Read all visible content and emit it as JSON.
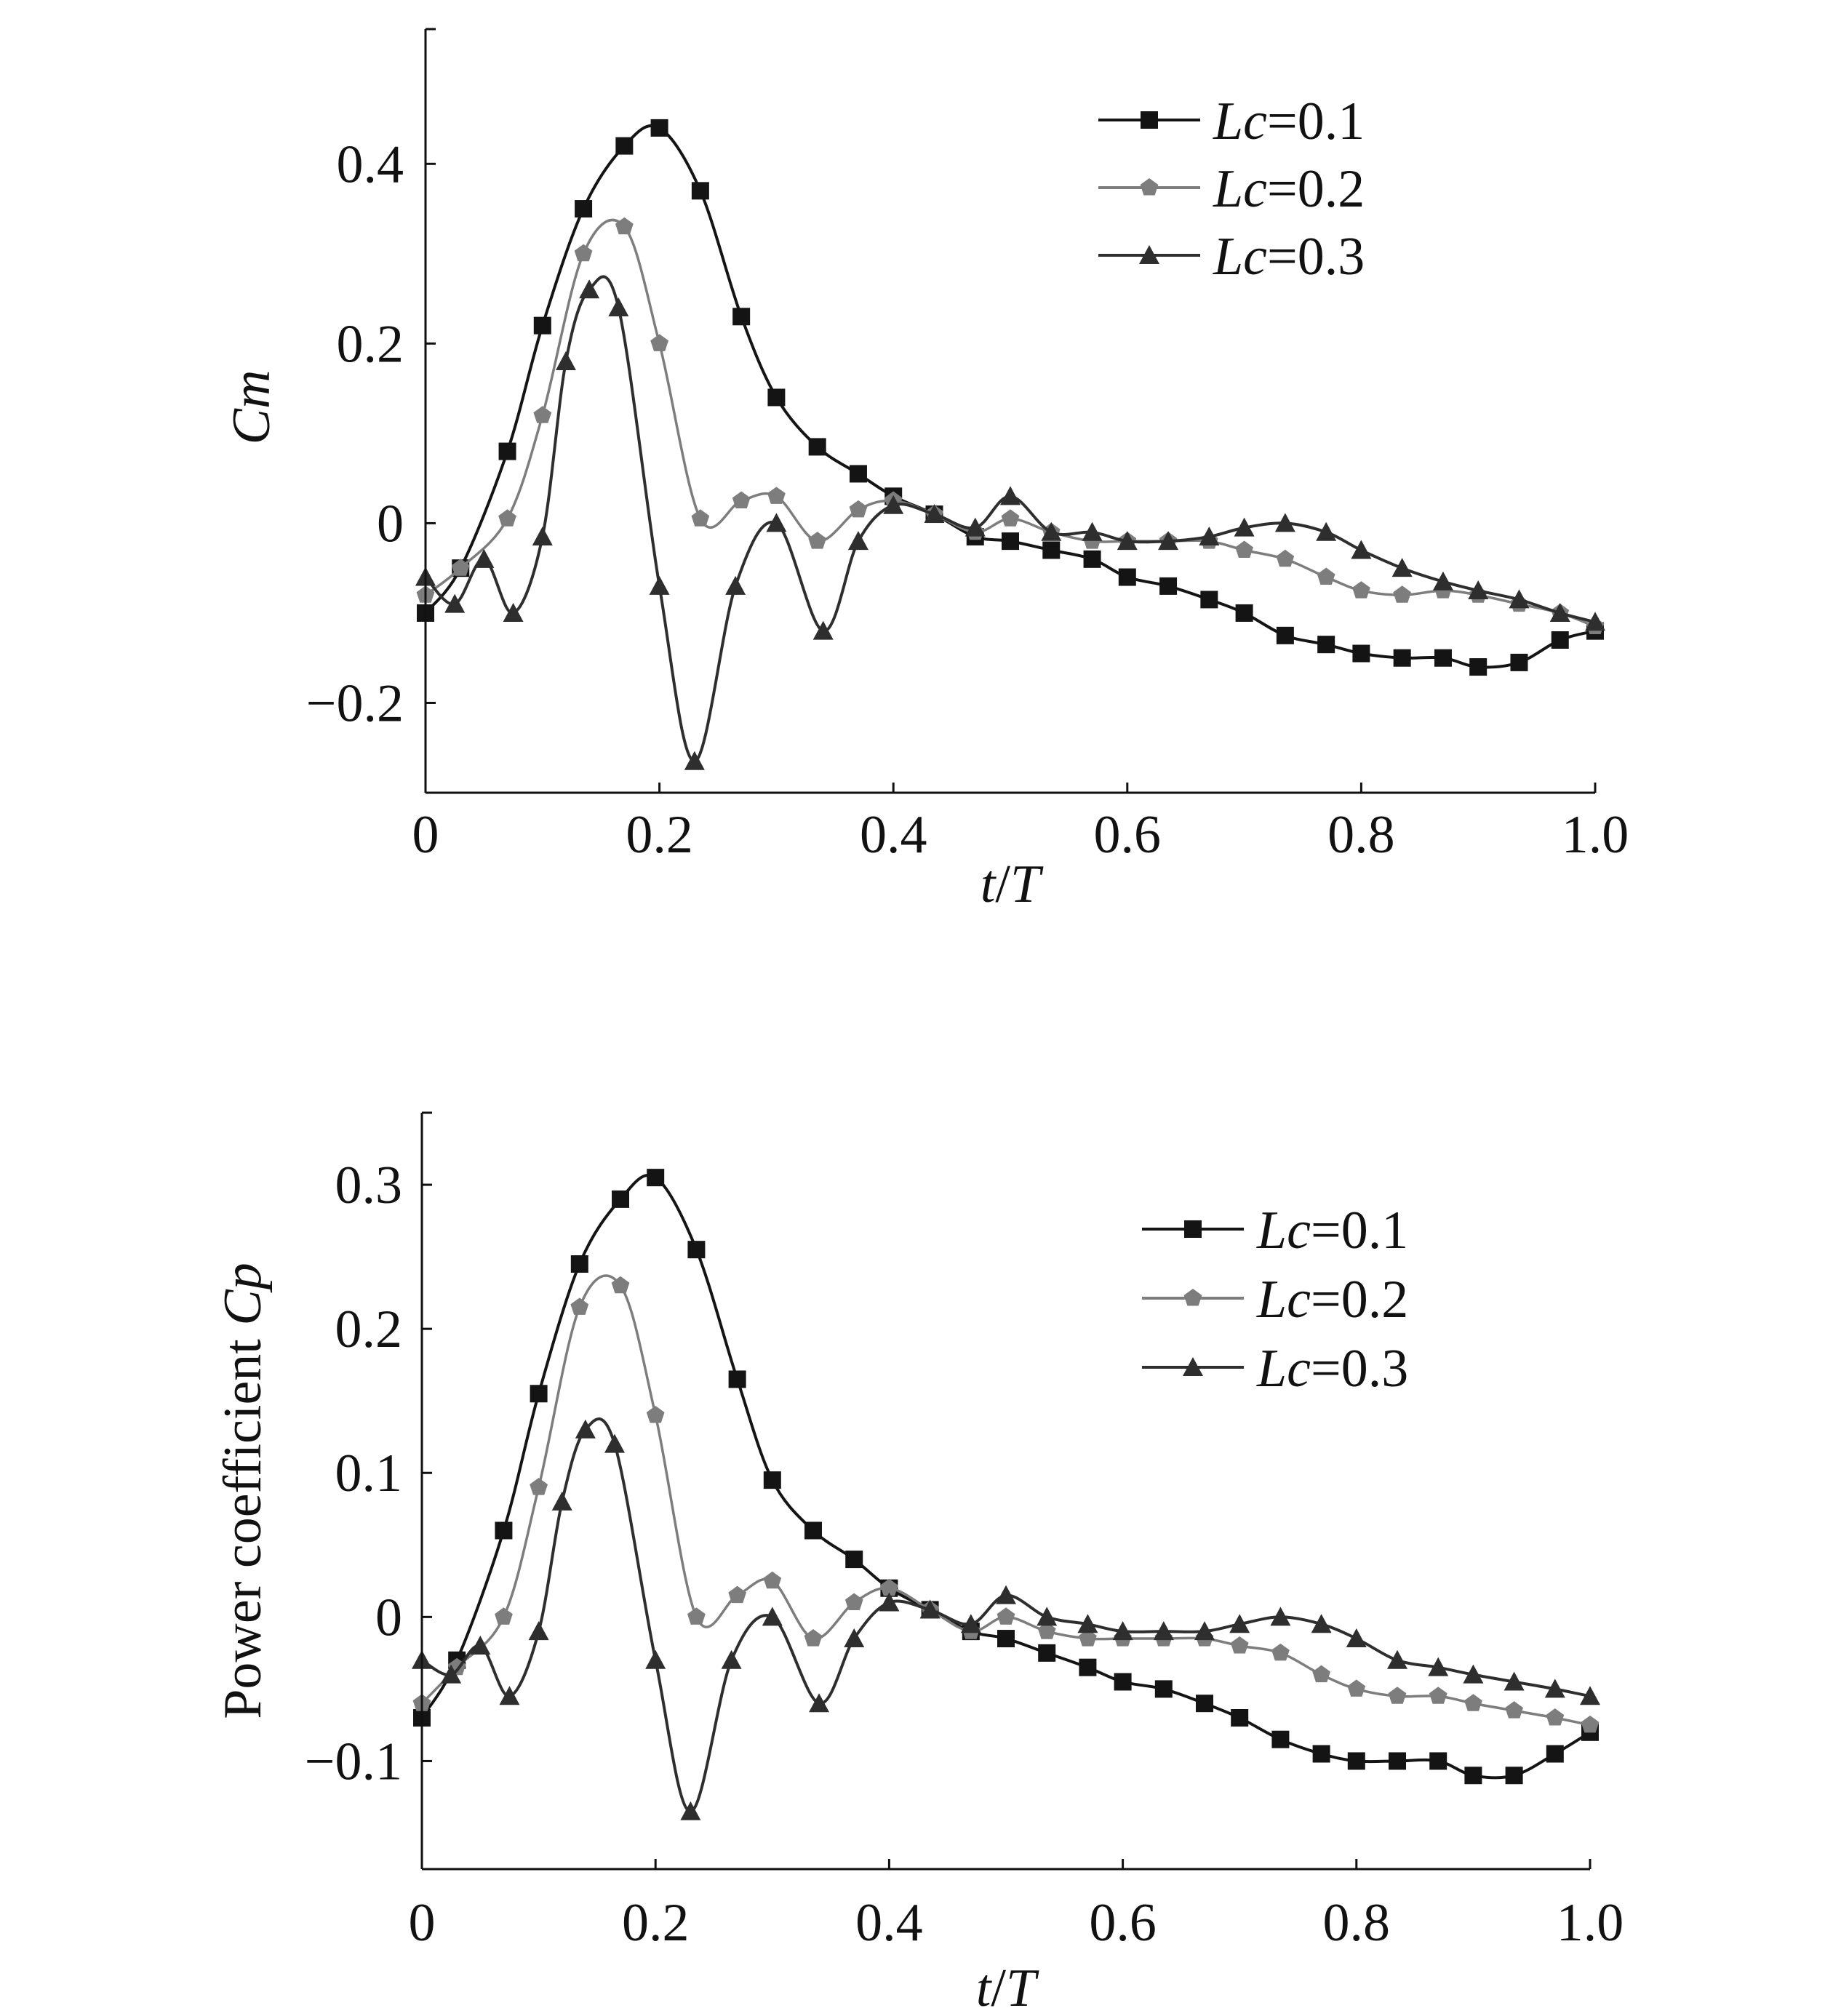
{
  "colors": {
    "Lc=0.1": "#141414",
    "Lc=0.2": "#7d7d7d",
    "Lc=0.3": "#2e2e2e",
    "axis": "#111111",
    "background": "#ffffff"
  },
  "chart_data": [
    {
      "type": "line",
      "xlabel": {
        "italic_a": "t",
        "plain": "/",
        "italic_b": "T"
      },
      "ylabel": {
        "plain": "",
        "italic": "Cm"
      },
      "xlim": [
        0,
        1.0
      ],
      "ylim": [
        -0.3,
        0.55
      ],
      "xticks": [
        {
          "value": 0,
          "label": "0"
        },
        {
          "value": 0.2,
          "label": "0.2"
        },
        {
          "value": 0.4,
          "label": "0.4"
        },
        {
          "value": 0.6,
          "label": "0.6"
        },
        {
          "value": 0.8,
          "label": "0.8"
        },
        {
          "value": 1.0,
          "label": "1.0"
        }
      ],
      "yticks": [
        {
          "value": 0.4,
          "label": "0.4"
        },
        {
          "value": 0.2,
          "label": "0.2"
        },
        {
          "value": 0,
          "label": "0"
        },
        {
          "value": -0.2,
          "label": "−0.2"
        }
      ],
      "grid": false,
      "legend_position": "top-right",
      "series": [
        {
          "name": "Lc=0.1",
          "legend_italic": "Lc",
          "legend_plain": "=0.1",
          "marker": "square",
          "x": [
            0.0,
            0.03,
            0.07,
            0.1,
            0.135,
            0.17,
            0.2,
            0.235,
            0.27,
            0.3,
            0.335,
            0.37,
            0.4,
            0.435,
            0.47,
            0.5,
            0.535,
            0.57,
            0.6,
            0.635,
            0.67,
            0.7,
            0.735,
            0.77,
            0.8,
            0.835,
            0.87,
            0.9,
            0.935,
            0.97,
            1.0
          ],
          "y": [
            -0.1,
            -0.05,
            0.08,
            0.22,
            0.35,
            0.42,
            0.44,
            0.37,
            0.23,
            0.14,
            0.085,
            0.055,
            0.03,
            0.01,
            -0.015,
            -0.02,
            -0.03,
            -0.04,
            -0.06,
            -0.07,
            -0.085,
            -0.1,
            -0.125,
            -0.135,
            -0.145,
            -0.15,
            -0.15,
            -0.16,
            -0.155,
            -0.13,
            -0.12
          ]
        },
        {
          "name": "Lc=0.2",
          "legend_italic": "Lc",
          "legend_plain": "=0.2",
          "marker": "pentagon",
          "x": [
            0.0,
            0.03,
            0.07,
            0.1,
            0.135,
            0.17,
            0.2,
            0.235,
            0.27,
            0.3,
            0.335,
            0.37,
            0.4,
            0.435,
            0.47,
            0.5,
            0.535,
            0.57,
            0.6,
            0.635,
            0.67,
            0.7,
            0.735,
            0.77,
            0.8,
            0.835,
            0.87,
            0.9,
            0.935,
            0.97,
            1.0
          ],
          "y": [
            -0.08,
            -0.05,
            0.005,
            0.12,
            0.3,
            0.33,
            0.2,
            0.005,
            0.025,
            0.03,
            -0.02,
            0.015,
            0.025,
            0.01,
            -0.01,
            0.005,
            -0.01,
            -0.02,
            -0.02,
            -0.02,
            -0.02,
            -0.03,
            -0.04,
            -0.06,
            -0.075,
            -0.08,
            -0.075,
            -0.08,
            -0.09,
            -0.1,
            -0.115
          ]
        },
        {
          "name": "Lc=0.3",
          "legend_italic": "Lc",
          "legend_plain": "=0.3",
          "marker": "triangle",
          "x": [
            0.0,
            0.025,
            0.05,
            0.075,
            0.1,
            0.12,
            0.14,
            0.165,
            0.2,
            0.23,
            0.265,
            0.3,
            0.34,
            0.37,
            0.4,
            0.435,
            0.47,
            0.5,
            0.535,
            0.57,
            0.6,
            0.635,
            0.67,
            0.7,
            0.735,
            0.77,
            0.8,
            0.835,
            0.87,
            0.9,
            0.935,
            0.97,
            1.0
          ],
          "y": [
            -0.06,
            -0.09,
            -0.04,
            -0.1,
            -0.015,
            0.18,
            0.26,
            0.24,
            -0.07,
            -0.265,
            -0.07,
            0.0,
            -0.12,
            -0.02,
            0.02,
            0.01,
            -0.005,
            0.03,
            -0.01,
            -0.01,
            -0.02,
            -0.02,
            -0.015,
            -0.005,
            0.0,
            -0.01,
            -0.03,
            -0.05,
            -0.065,
            -0.075,
            -0.085,
            -0.1,
            -0.11
          ]
        }
      ]
    },
    {
      "type": "line",
      "xlabel": {
        "italic_a": "t",
        "plain": "/",
        "italic_b": "T"
      },
      "ylabel": {
        "plain": "Power coefficient ",
        "italic": "Cp"
      },
      "xlim": [
        0,
        1.0
      ],
      "ylim": [
        -0.175,
        0.35
      ],
      "xticks": [
        {
          "value": 0,
          "label": "0"
        },
        {
          "value": 0.2,
          "label": "0.2"
        },
        {
          "value": 0.4,
          "label": "0.4"
        },
        {
          "value": 0.6,
          "label": "0.6"
        },
        {
          "value": 0.8,
          "label": "0.8"
        },
        {
          "value": 1.0,
          "label": "1.0"
        }
      ],
      "yticks": [
        {
          "value": 0.3,
          "label": "0.3"
        },
        {
          "value": 0.2,
          "label": "0.2"
        },
        {
          "value": 0.1,
          "label": "0.1"
        },
        {
          "value": 0,
          "label": "0"
        },
        {
          "value": -0.1,
          "label": "−0.1"
        }
      ],
      "grid": false,
      "legend_position": "top-right",
      "series": [
        {
          "name": "Lc=0.1",
          "legend_italic": "Lc",
          "legend_plain": "=0.1",
          "marker": "square",
          "x": [
            0.0,
            0.03,
            0.07,
            0.1,
            0.135,
            0.17,
            0.2,
            0.235,
            0.27,
            0.3,
            0.335,
            0.37,
            0.4,
            0.435,
            0.47,
            0.5,
            0.535,
            0.57,
            0.6,
            0.635,
            0.67,
            0.7,
            0.735,
            0.77,
            0.8,
            0.835,
            0.87,
            0.9,
            0.935,
            0.97,
            1.0
          ],
          "y": [
            -0.07,
            -0.03,
            0.06,
            0.155,
            0.245,
            0.29,
            0.305,
            0.255,
            0.165,
            0.095,
            0.06,
            0.04,
            0.02,
            0.005,
            -0.01,
            -0.015,
            -0.025,
            -0.035,
            -0.045,
            -0.05,
            -0.06,
            -0.07,
            -0.085,
            -0.095,
            -0.1,
            -0.1,
            -0.1,
            -0.11,
            -0.11,
            -0.095,
            -0.08
          ]
        },
        {
          "name": "Lc=0.2",
          "legend_italic": "Lc",
          "legend_plain": "=0.2",
          "marker": "pentagon",
          "x": [
            0.0,
            0.03,
            0.07,
            0.1,
            0.135,
            0.17,
            0.2,
            0.235,
            0.27,
            0.3,
            0.335,
            0.37,
            0.4,
            0.435,
            0.47,
            0.5,
            0.535,
            0.57,
            0.6,
            0.635,
            0.67,
            0.7,
            0.735,
            0.77,
            0.8,
            0.835,
            0.87,
            0.9,
            0.935,
            0.97,
            1.0
          ],
          "y": [
            -0.06,
            -0.035,
            0.0,
            0.09,
            0.215,
            0.23,
            0.14,
            0.0,
            0.015,
            0.025,
            -0.015,
            0.01,
            0.02,
            0.005,
            -0.01,
            0.0,
            -0.01,
            -0.015,
            -0.015,
            -0.015,
            -0.015,
            -0.02,
            -0.025,
            -0.04,
            -0.05,
            -0.055,
            -0.055,
            -0.06,
            -0.065,
            -0.07,
            -0.075
          ]
        },
        {
          "name": "Lc=0.3",
          "legend_italic": "Lc",
          "legend_plain": "=0.3",
          "marker": "triangle",
          "x": [
            0.0,
            0.025,
            0.05,
            0.075,
            0.1,
            0.12,
            0.14,
            0.165,
            0.2,
            0.23,
            0.265,
            0.3,
            0.34,
            0.37,
            0.4,
            0.435,
            0.47,
            0.5,
            0.535,
            0.57,
            0.6,
            0.635,
            0.67,
            0.7,
            0.735,
            0.77,
            0.8,
            0.835,
            0.87,
            0.9,
            0.935,
            0.97,
            1.0
          ],
          "y": [
            -0.03,
            -0.04,
            -0.02,
            -0.055,
            -0.01,
            0.08,
            0.13,
            0.12,
            -0.03,
            -0.135,
            -0.03,
            0.0,
            -0.06,
            -0.015,
            0.01,
            0.005,
            -0.005,
            0.015,
            0.0,
            -0.005,
            -0.01,
            -0.01,
            -0.01,
            -0.005,
            0.0,
            -0.005,
            -0.015,
            -0.03,
            -0.035,
            -0.04,
            -0.045,
            -0.05,
            -0.055
          ]
        }
      ]
    }
  ]
}
